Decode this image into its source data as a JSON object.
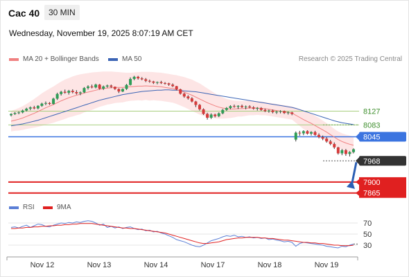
{
  "header": {
    "instrument": "Cac 40",
    "timeframe": "30 MIN",
    "datetime": "Wednesday, November 19, 2025 8:07:19 AM CET"
  },
  "legend": {
    "ma20_label": "MA 20 + Bollinger Bands",
    "ma50_label": "MA 50",
    "credit": "Research © 2025 Trading Central",
    "rsi_label": "RSI",
    "rsi_ma_label": "9MA"
  },
  "colors": {
    "up": "#2e9e57",
    "down": "#d63a3a",
    "ma20": "#f08080",
    "band": "#fde0e0",
    "ma50": "#3b64b5",
    "resistance": "#a7cf7e",
    "pivot": "#3b74e0",
    "support": "#e02020",
    "last": "#333333",
    "rsi": "#5b7fd6",
    "rsi_ma": "#e02020"
  },
  "chart_data": [
    {
      "type": "candlestick",
      "name": "price",
      "x_labels": [
        "Nov 12",
        "Nov 13",
        "Nov 14",
        "Nov 17",
        "Nov 18",
        "Nov 19"
      ],
      "ylim": [
        7840,
        8270
      ],
      "ohlc": [
        [
          8114,
          8120,
          8110,
          8118
        ],
        [
          8118,
          8124,
          8115,
          8121
        ],
        [
          8121,
          8126,
          8117,
          8123
        ],
        [
          8123,
          8132,
          8120,
          8129
        ],
        [
          8129,
          8138,
          8126,
          8135
        ],
        [
          8135,
          8142,
          8130,
          8139
        ],
        [
          8139,
          8144,
          8133,
          8136
        ],
        [
          8136,
          8146,
          8133,
          8144
        ],
        [
          8144,
          8154,
          8141,
          8151
        ],
        [
          8151,
          8158,
          8146,
          8153
        ],
        [
          8153,
          8156,
          8147,
          8150
        ],
        [
          8150,
          8170,
          8148,
          8167
        ],
        [
          8167,
          8186,
          8163,
          8182
        ],
        [
          8182,
          8192,
          8177,
          8189
        ],
        [
          8189,
          8196,
          8183,
          8186
        ],
        [
          8186,
          8195,
          8180,
          8192
        ],
        [
          8192,
          8197,
          8184,
          8188
        ],
        [
          8188,
          8194,
          8180,
          8184
        ],
        [
          8184,
          8190,
          8178,
          8187
        ],
        [
          8187,
          8204,
          8185,
          8201
        ],
        [
          8201,
          8210,
          8196,
          8206
        ],
        [
          8206,
          8212,
          8200,
          8203
        ],
        [
          8203,
          8215,
          8200,
          8212
        ],
        [
          8212,
          8214,
          8196,
          8199
        ],
        [
          8199,
          8209,
          8195,
          8206
        ],
        [
          8206,
          8212,
          8202,
          8209
        ],
        [
          8209,
          8212,
          8201,
          8205
        ],
        [
          8205,
          8206,
          8195,
          8198
        ],
        [
          8198,
          8200,
          8185,
          8190
        ],
        [
          8190,
          8200,
          8188,
          8198
        ],
        [
          8198,
          8214,
          8195,
          8211
        ],
        [
          8211,
          8235,
          8209,
          8230
        ],
        [
          8230,
          8240,
          8226,
          8237
        ],
        [
          8237,
          8240,
          8228,
          8232
        ],
        [
          8232,
          8236,
          8226,
          8229
        ],
        [
          8229,
          8233,
          8220,
          8224
        ],
        [
          8224,
          8228,
          8218,
          8222
        ],
        [
          8222,
          8224,
          8214,
          8218
        ],
        [
          8218,
          8222,
          8213,
          8220
        ],
        [
          8220,
          8224,
          8214,
          8217
        ],
        [
          8217,
          8220,
          8212,
          8216
        ],
        [
          8216,
          8218,
          8208,
          8212
        ],
        [
          8212,
          8216,
          8204,
          8207
        ],
        [
          8207,
          8208,
          8194,
          8197
        ],
        [
          8197,
          8199,
          8180,
          8183
        ],
        [
          8183,
          8186,
          8170,
          8174
        ],
        [
          8174,
          8178,
          8164,
          8168
        ],
        [
          8168,
          8172,
          8155,
          8158
        ],
        [
          8158,
          8160,
          8140,
          8147
        ],
        [
          8147,
          8150,
          8129,
          8133
        ],
        [
          8133,
          8136,
          8115,
          8118
        ],
        [
          8118,
          8122,
          8100,
          8106
        ],
        [
          8106,
          8120,
          8102,
          8116
        ],
        [
          8116,
          8119,
          8107,
          8111
        ],
        [
          8111,
          8123,
          8108,
          8120
        ],
        [
          8120,
          8134,
          8117,
          8131
        ],
        [
          8131,
          8140,
          8128,
          8137
        ],
        [
          8137,
          8146,
          8133,
          8143
        ],
        [
          8143,
          8148,
          8138,
          8141
        ],
        [
          8141,
          8146,
          8134,
          8144
        ],
        [
          8144,
          8148,
          8137,
          8140
        ],
        [
          8140,
          8145,
          8133,
          8142
        ],
        [
          8142,
          8146,
          8136,
          8139
        ],
        [
          8139,
          8143,
          8132,
          8135
        ],
        [
          8135,
          8140,
          8129,
          8137
        ],
        [
          8137,
          8140,
          8128,
          8131
        ],
        [
          8131,
          8135,
          8124,
          8127
        ],
        [
          8127,
          8132,
          8122,
          8129
        ],
        [
          8129,
          8132,
          8120,
          8124
        ],
        [
          8124,
          8128,
          8118,
          8125
        ],
        [
          8125,
          8130,
          8120,
          8127
        ],
        [
          8127,
          8129,
          8118,
          8121
        ],
        [
          8121,
          8126,
          8116,
          8123
        ],
        [
          8123,
          8125,
          8114,
          8118
        ],
        [
          8036,
          8062,
          8030,
          8058
        ],
        [
          8058,
          8064,
          8048,
          8056
        ],
        [
          8056,
          8066,
          8050,
          8063
        ],
        [
          8063,
          8066,
          8052,
          8055
        ],
        [
          8055,
          8063,
          8049,
          8060
        ],
        [
          8060,
          8064,
          8048,
          8051
        ],
        [
          8051,
          8056,
          8040,
          8044
        ],
        [
          8044,
          8049,
          8034,
          8039
        ],
        [
          8039,
          8044,
          8026,
          8030
        ],
        [
          8030,
          8035,
          8018,
          8022
        ],
        [
          8022,
          8027,
          8006,
          8011
        ],
        [
          8011,
          8013,
          7988,
          7992
        ],
        [
          7992,
          8006,
          7986,
          8002
        ],
        [
          8002,
          8006,
          7984,
          7990
        ],
        [
          7990,
          7999,
          7982,
          7996
        ],
        [
          7996,
          8008,
          7992,
          8005
        ]
      ],
      "ma20": [
        8095,
        8098,
        8101,
        8105,
        8110,
        8115,
        8120,
        8126,
        8132,
        8138,
        8143,
        8148,
        8154,
        8160,
        8165,
        8170,
        8174,
        8178,
        8181,
        8185,
        8188,
        8191,
        8194,
        8197,
        8199,
        8201,
        8202,
        8203,
        8203,
        8203,
        8204,
        8205,
        8206,
        8207,
        8207,
        8208,
        8207,
        8207,
        8206,
        8205,
        8203,
        8201,
        8199,
        8196,
        8192,
        8188,
        8183,
        8178,
        8172,
        8166,
        8160,
        8154,
        8149,
        8144,
        8140,
        8137,
        8135,
        8134,
        8134,
        8135,
        8135,
        8136,
        8137,
        8137,
        8137,
        8136,
        8135,
        8133,
        8131,
        8129,
        8127,
        8125,
        8123,
        8121,
        8114,
        8107,
        8100,
        8094,
        8088,
        8081,
        8074,
        8067,
        8060,
        8052,
        8044,
        8036,
        8030,
        8025,
        8021,
        8018
      ],
      "bb_upper": [
        8128,
        8132,
        8137,
        8143,
        8150,
        8158,
        8166,
        8175,
        8184,
        8192,
        8199,
        8206,
        8214,
        8222,
        8228,
        8233,
        8238,
        8242,
        8245,
        8247,
        8249,
        8251,
        8252,
        8253,
        8254,
        8254,
        8254,
        8253,
        8252,
        8251,
        8250,
        8250,
        8251,
        8252,
        8253,
        8253,
        8253,
        8252,
        8251,
        8250,
        8248,
        8246,
        8244,
        8242,
        8239,
        8236,
        8232,
        8228,
        8222,
        8216,
        8208,
        8200,
        8192,
        8184,
        8177,
        8171,
        8166,
        8163,
        8161,
        8160,
        8160,
        8160,
        8160,
        8160,
        8159,
        8158,
        8156,
        8154,
        8152,
        8150,
        8148,
        8146,
        8144,
        8142,
        8138,
        8134,
        8130,
        8125,
        8119,
        8112,
        8105,
        8097,
        8089,
        8080,
        8070,
        8062,
        8056,
        8052,
        8049,
        8046
      ],
      "bb_lower": [
        8062,
        8064,
        8065,
        8067,
        8070,
        8072,
        8074,
        8077,
        8080,
        8084,
        8087,
        8090,
        8094,
        8098,
        8102,
        8107,
        8110,
        8114,
        8117,
        8123,
        8127,
        8131,
        8136,
        8141,
        8144,
        8148,
        8150,
        8153,
        8154,
        8155,
        8158,
        8160,
        8161,
        8162,
        8161,
        8163,
        8161,
        8162,
        8161,
        8160,
        8158,
        8156,
        8154,
        8150,
        8145,
        8140,
        8134,
        8128,
        8122,
        8116,
        8112,
        8108,
        8106,
        8104,
        8103,
        8103,
        8104,
        8105,
        8107,
        8110,
        8110,
        8112,
        8114,
        8114,
        8115,
        8114,
        8114,
        8112,
        8110,
        8108,
        8106,
        8104,
        8102,
        8100,
        8090,
        8080,
        8070,
        8063,
        8057,
        8050,
        8043,
        8037,
        8031,
        8024,
        8018,
        8010,
        8004,
        7998,
        7993,
        7990
      ],
      "ma50": [
        8080,
        8082,
        8084,
        8086,
        8089,
        8092,
        8095,
        8098,
        8102,
        8106,
        8110,
        8114,
        8118,
        8122,
        8126,
        8130,
        8134,
        8138,
        8142,
        8146,
        8150,
        8154,
        8158,
        8162,
        8165,
        8168,
        8171,
        8174,
        8177,
        8180,
        8182,
        8184,
        8186,
        8188,
        8190,
        8191,
        8192,
        8193,
        8194,
        8194,
        8195,
        8195,
        8194,
        8194,
        8193,
        8192,
        8191,
        8190,
        8189,
        8187,
        8185,
        8183,
        8181,
        8179,
        8177,
        8175,
        8173,
        8171,
        8169,
        8167,
        8165,
        8163,
        8161,
        8159,
        8157,
        8155,
        8153,
        8151,
        8149,
        8147,
        8145,
        8143,
        8141,
        8139,
        8136,
        8132,
        8128,
        8124,
        8120,
        8116,
        8112,
        8108,
        8104,
        8100,
        8096,
        8093,
        8090,
        8088,
        8086,
        8084
      ]
    },
    {
      "type": "levels",
      "name": "key-levels",
      "resistance": [
        8127,
        8083
      ],
      "pivot": 8045,
      "last": 7968,
      "support": [
        7900,
        7865
      ]
    },
    {
      "type": "line",
      "name": "rsi",
      "ylim": [
        10,
        90
      ],
      "ticks": [
        70,
        50,
        30
      ],
      "series": [
        {
          "name": "RSI",
          "values": [
            62,
            63,
            61,
            64,
            66,
            62,
            65,
            68,
            67,
            64,
            63,
            66,
            68,
            70,
            69,
            71,
            70,
            72,
            71,
            73,
            74,
            73,
            70,
            66,
            68,
            62,
            64,
            61,
            63,
            60,
            62,
            63,
            60,
            58,
            59,
            56,
            57,
            54,
            55,
            52,
            50,
            47,
            44,
            40,
            38,
            36,
            33,
            30,
            28,
            27,
            30,
            34,
            38,
            40,
            42,
            45,
            47,
            46,
            48,
            45,
            46,
            44,
            45,
            43,
            44,
            42,
            43,
            40,
            41,
            39,
            38,
            36,
            37,
            35,
            28,
            33,
            35,
            34,
            33,
            32,
            31,
            30,
            28,
            27,
            26,
            25,
            28,
            27,
            30,
            32
          ]
        },
        {
          "name": "9MA",
          "values": [
            60,
            60,
            61,
            61,
            62,
            62,
            63,
            63,
            64,
            64,
            65,
            65,
            66,
            66,
            67,
            67,
            68,
            68,
            69,
            69,
            69,
            69,
            68,
            67,
            66,
            65,
            64,
            63,
            62,
            61,
            61,
            60,
            60,
            59,
            58,
            57,
            56,
            55,
            54,
            53,
            52,
            50,
            48,
            46,
            44,
            42,
            40,
            38,
            36,
            34,
            33,
            33,
            34,
            35,
            36,
            38,
            40,
            41,
            42,
            43,
            43,
            44,
            44,
            44,
            44,
            43,
            43,
            42,
            42,
            41,
            40,
            39,
            39,
            38,
            37,
            36,
            35,
            35,
            34,
            34,
            33,
            33,
            32,
            31,
            30,
            30,
            29,
            29,
            29,
            30
          ]
        }
      ]
    }
  ]
}
